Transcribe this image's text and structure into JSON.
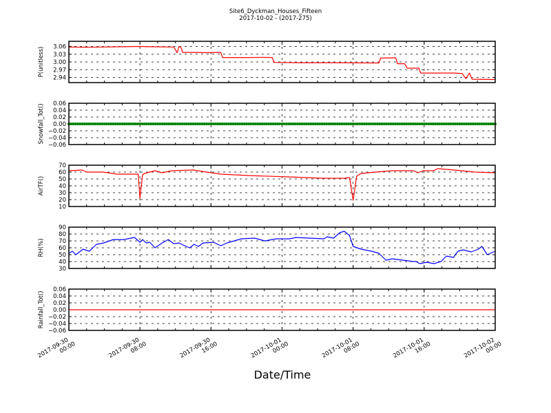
{
  "chart_data": {
    "type": "line",
    "title": "Site6_Dyckman_Houses_Fifteen",
    "subtitle": "2017-10-02 - (2017-275)",
    "xlabel": "Date/Time",
    "x_unit": "hours since 2017-09-30 00:00",
    "xlim": [
      0,
      48
    ],
    "x_ticks": [
      0,
      8,
      16,
      24,
      32,
      40,
      48
    ],
    "x_tick_labels": [
      [
        "2017-09-30",
        "00:00"
      ],
      [
        "2017-09-30",
        "08:00"
      ],
      [
        "2017-09-30",
        "16:00"
      ],
      [
        "2017-10-01",
        "00:00"
      ],
      [
        "2017-10-01",
        "08:00"
      ],
      [
        "2017-10-01",
        "16:00"
      ],
      [
        "2017-10-02",
        "00:00"
      ]
    ],
    "grid": true,
    "panels": [
      {
        "ylabel": "P(unitless)",
        "ylim": [
          2.92,
          3.08
        ],
        "color": "#ff0000",
        "style": "line",
        "y_ticks": [
          2.94,
          2.97,
          3.0,
          3.03,
          3.06
        ],
        "y_tick_labels": [
          "2.94",
          "2.97",
          "3.00",
          "3.03",
          "3.06"
        ],
        "points": [
          [
            0,
            3.058
          ],
          [
            2,
            3.057
          ],
          [
            4,
            3.058
          ],
          [
            6,
            3.059
          ],
          [
            8,
            3.06
          ],
          [
            9,
            3.059
          ],
          [
            11.8,
            3.058
          ],
          [
            12.2,
            3.036
          ],
          [
            12.4,
            3.06
          ],
          [
            12.6,
            3.058
          ],
          [
            12.8,
            3.037
          ],
          [
            14,
            3.037
          ],
          [
            15.5,
            3.036
          ],
          [
            17.1,
            3.037
          ],
          [
            17.3,
            3.017
          ],
          [
            20,
            3.017
          ],
          [
            22.1,
            3.018
          ],
          [
            22.9,
            3.017
          ],
          [
            23.1,
            2.998
          ],
          [
            26,
            2.997
          ],
          [
            30,
            2.997
          ],
          [
            34.9,
            2.996
          ],
          [
            35.1,
            3.015
          ],
          [
            36.8,
            3.016
          ],
          [
            37,
            2.993
          ],
          [
            37.8,
            2.993
          ],
          [
            38.1,
            2.976
          ],
          [
            39.4,
            2.976
          ],
          [
            39.6,
            2.957
          ],
          [
            43.4,
            2.957
          ],
          [
            44.3,
            2.955
          ],
          [
            44.7,
            2.935
          ],
          [
            45.1,
            2.957
          ],
          [
            45.4,
            2.933
          ],
          [
            48,
            2.932
          ]
        ]
      },
      {
        "ylabel": "Snowfall_Tot()",
        "ylim": [
          -0.06,
          0.06
        ],
        "color": "#008000",
        "style": "markers",
        "y_ticks": [
          -0.06,
          -0.04,
          -0.02,
          0.0,
          0.02,
          0.04,
          0.06
        ],
        "y_tick_labels": [
          "−0.06",
          "−0.04",
          "−0.02",
          "0.00",
          "0.02",
          "0.04",
          "0.06"
        ],
        "points": [
          [
            0,
            0
          ],
          [
            48,
            0
          ]
        ]
      },
      {
        "ylabel": "AirTF()",
        "ylim": [
          10,
          70
        ],
        "color": "#ff0000",
        "style": "line",
        "y_ticks": [
          10,
          20,
          30,
          40,
          50,
          60,
          70
        ],
        "y_tick_labels": [
          "10",
          "20",
          "30",
          "40",
          "50",
          "60",
          "70"
        ],
        "points": [
          [
            0,
            62
          ],
          [
            1.5,
            63
          ],
          [
            2,
            60
          ],
          [
            3.9,
            60
          ],
          [
            5.4,
            57
          ],
          [
            7.8,
            57
          ],
          [
            8.0,
            22
          ],
          [
            8.3,
            56
          ],
          [
            8.5,
            58
          ],
          [
            9.7,
            62
          ],
          [
            10.5,
            59
          ],
          [
            11.6,
            62
          ],
          [
            14,
            63
          ],
          [
            15.5,
            60
          ],
          [
            17.1,
            57
          ],
          [
            20.2,
            55
          ],
          [
            24.8,
            53
          ],
          [
            28.7,
            51
          ],
          [
            31.0,
            51
          ],
          [
            31.6,
            52
          ],
          [
            32.0,
            19
          ],
          [
            32.4,
            54
          ],
          [
            32.9,
            58
          ],
          [
            34.5,
            60
          ],
          [
            36.4,
            62
          ],
          [
            38.8,
            62
          ],
          [
            39.3,
            59
          ],
          [
            39.9,
            62
          ],
          [
            41.1,
            62
          ],
          [
            41.5,
            65
          ],
          [
            43.4,
            63
          ],
          [
            45.7,
            60
          ],
          [
            48,
            59
          ]
        ]
      },
      {
        "ylabel": "RH(%)",
        "ylim": [
          30,
          90
        ],
        "color": "#0000ff",
        "style": "line",
        "y_ticks": [
          30,
          40,
          50,
          60,
          70,
          80,
          90
        ],
        "y_tick_labels": [
          "30",
          "40",
          "50",
          "60",
          "70",
          "80",
          "90"
        ],
        "points": [
          [
            0,
            52
          ],
          [
            0.4,
            55
          ],
          [
            0.8,
            50
          ],
          [
            1.6,
            58
          ],
          [
            2.3,
            55
          ],
          [
            3.1,
            65
          ],
          [
            3.9,
            67
          ],
          [
            5.0,
            72
          ],
          [
            6.2,
            72
          ],
          [
            7.4,
            75
          ],
          [
            8.0,
            68
          ],
          [
            8.3,
            72
          ],
          [
            8.7,
            67
          ],
          [
            9.1,
            68
          ],
          [
            9.7,
            60
          ],
          [
            10.5,
            67
          ],
          [
            11.2,
            72
          ],
          [
            11.8,
            66
          ],
          [
            12.4,
            67
          ],
          [
            13.2,
            62
          ],
          [
            13.6,
            60
          ],
          [
            14.1,
            65
          ],
          [
            14.6,
            62
          ],
          [
            15.1,
            67
          ],
          [
            16.3,
            68
          ],
          [
            17.1,
            63
          ],
          [
            17.8,
            67
          ],
          [
            19.4,
            73
          ],
          [
            20.9,
            74
          ],
          [
            22.1,
            70
          ],
          [
            23.3,
            73
          ],
          [
            24.8,
            73
          ],
          [
            25.6,
            75
          ],
          [
            28.7,
            73
          ],
          [
            29.1,
            76
          ],
          [
            29.8,
            74
          ],
          [
            30.5,
            82
          ],
          [
            31.0,
            84
          ],
          [
            31.6,
            78
          ],
          [
            32.0,
            62
          ],
          [
            32.9,
            58
          ],
          [
            34.1,
            55
          ],
          [
            34.9,
            52
          ],
          [
            35.7,
            42
          ],
          [
            36.4,
            44
          ],
          [
            37.6,
            42
          ],
          [
            38.8,
            40
          ],
          [
            39.1,
            40
          ],
          [
            39.5,
            37
          ],
          [
            40.3,
            39
          ],
          [
            41.1,
            37
          ],
          [
            41.9,
            40
          ],
          [
            42.5,
            48
          ],
          [
            43.3,
            46
          ],
          [
            43.8,
            55
          ],
          [
            44.4,
            57
          ],
          [
            45.3,
            54
          ],
          [
            46.1,
            58
          ],
          [
            46.5,
            62
          ],
          [
            47.1,
            50
          ],
          [
            48,
            55
          ]
        ]
      },
      {
        "ylabel": "Rainfall_Tot()",
        "ylim": [
          -0.06,
          0.06
        ],
        "color": "#ff0000",
        "style": "line",
        "y_ticks": [
          -0.06,
          -0.04,
          -0.02,
          0.0,
          0.02,
          0.04,
          0.06
        ],
        "y_tick_labels": [
          "−0.06",
          "−0.04",
          "−0.02",
          "0.00",
          "0.02",
          "0.04",
          "0.06"
        ],
        "points": [
          [
            0,
            0
          ],
          [
            48,
            0
          ]
        ]
      }
    ]
  }
}
